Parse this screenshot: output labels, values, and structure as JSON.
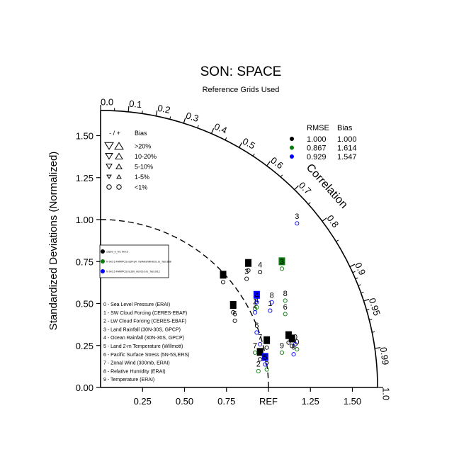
{
  "chart_data": {
    "type": "scatter",
    "title": "SON: SPACE",
    "subtitle": "Reference Grids Used",
    "ylabel": "Standardized Deviations (Normalized)",
    "arc_label": "Correlation",
    "ref_label": "REF",
    "r_max": 1.65,
    "axis_ticks": [
      "0.00",
      "0.25",
      "0.50",
      "0.75",
      "1.00",
      "1.25",
      "1.50"
    ],
    "x_ticks": [
      {
        "v": 0.25,
        "label": "0.25"
      },
      {
        "v": 0.5,
        "label": "0.50"
      },
      {
        "v": 0.75,
        "label": "0.75"
      },
      {
        "v": 1.0,
        "label": "REF"
      },
      {
        "v": 1.25,
        "label": "1.25"
      },
      {
        "v": 1.5,
        "label": "1.50"
      }
    ],
    "corr_ticks": [
      "0.0",
      "0.1",
      "0.2",
      "0.3",
      "0.4",
      "0.5",
      "0.6",
      "0.7",
      "0.8",
      "0.9",
      "0.95",
      "0.99",
      "1.0"
    ],
    "corr_values": [
      0.0,
      0.1,
      0.2,
      0.3,
      0.4,
      0.5,
      0.6,
      0.7,
      0.8,
      0.9,
      0.95,
      0.99,
      1.0
    ],
    "bias_legend": {
      "header_sign": "- / +",
      "header_bias": "Bias",
      "rows": [
        ">20%",
        "10-20%",
        "5-10%",
        "1-5%",
        "<1%"
      ]
    },
    "stats_table": {
      "headers": [
        "RMSE",
        "Bias"
      ],
      "rows": [
        {
          "color": "#000000",
          "rmse": "1.000",
          "bias": "1.000"
        },
        {
          "color": "#0a7a0a",
          "rmse": "0.867",
          "bias": "1.614"
        },
        {
          "color": "#0000ff",
          "rmse": "0.929",
          "bias": "1.547"
        }
      ]
    },
    "case_legend": [
      {
        "color": "#000000",
        "name": "case0_0_hr1 9x0.5"
      },
      {
        "color": "#0a7a0a",
        "name": "hi 0x0.5 FAMIPCS.resFrq4 .YanMeshNH8.0L.ro_Test.888"
      },
      {
        "color": "#0000ff",
        "name": "hi 0x0.5 FAMIPCS.hs100_rtef.00.0.lo_Test.0/12"
      }
    ],
    "variables": [
      "0 - Sea Level Pressure (ERAI)",
      "1 - SW Cloud Forcing (CERES-EBAF)",
      "2 - LW Cloud Forcing (CERES-EBAF)",
      "3 - Land Rainfall (30N-30S, GPCP)",
      "4 - Ocean Rainfall (30N-30S, GPCP)",
      "5 - Land 2-m Temperature (Willmott)",
      "6 - Pacific Surface Stress (5N-5S,ERS)",
      "7 - Zonal Wind (300mb, ERAI)",
      "8 - Relative Humidity (ERAI)",
      "9 - Temperature (ERAI)"
    ],
    "points": [
      {
        "series": 0,
        "id": "0",
        "x": 1.12,
        "y": 0.28,
        "style": "box"
      },
      {
        "series": 0,
        "id": "1",
        "x": 0.73,
        "y": 0.64,
        "style": "box"
      },
      {
        "series": 0,
        "id": "2",
        "x": 0.88,
        "y": 0.71,
        "style": "box"
      },
      {
        "series": 0,
        "id": "3",
        "x": 0.87,
        "y": 0.66,
        "style": "plain"
      },
      {
        "series": 0,
        "id": "4",
        "x": 0.95,
        "y": 0.7,
        "style": "plain"
      },
      {
        "series": 0,
        "id": "5",
        "x": 0.95,
        "y": 0.18,
        "style": "box"
      },
      {
        "series": 0,
        "id": "6",
        "x": 0.8,
        "y": 0.41,
        "style": "plain"
      },
      {
        "series": 0,
        "id": "7",
        "x": 0.99,
        "y": 0.25,
        "style": "box"
      },
      {
        "series": 0,
        "id": "8",
        "x": 0.79,
        "y": 0.46,
        "style": "box"
      },
      {
        "series": 0,
        "id": "9",
        "x": 1.14,
        "y": 0.26,
        "style": "box"
      },
      {
        "series": 1,
        "id": "0",
        "x": 1.17,
        "y": 0.24,
        "style": "plain"
      },
      {
        "series": 1,
        "id": "1",
        "x": 0.92,
        "y": 0.48,
        "style": "plain"
      },
      {
        "series": 1,
        "id": "2",
        "x": 0.94,
        "y": 0.11,
        "style": "plain"
      },
      {
        "series": 1,
        "id": "3",
        "x": 1.08,
        "y": 0.72,
        "style": "box"
      },
      {
        "series": 1,
        "id": "4",
        "x": 0.93,
        "y": 0.49,
        "style": "plain"
      },
      {
        "series": 1,
        "id": "5",
        "x": 0.99,
        "y": 0.12,
        "style": "plain"
      },
      {
        "series": 1,
        "id": "6",
        "x": 1.1,
        "y": 0.45,
        "style": "plain"
      },
      {
        "series": 1,
        "id": "7",
        "x": 0.92,
        "y": 0.22,
        "style": "plain"
      },
      {
        "series": 1,
        "id": "8",
        "x": 1.1,
        "y": 0.53,
        "style": "plain"
      },
      {
        "series": 1,
        "id": "9",
        "x": 1.08,
        "y": 0.22,
        "style": "plain"
      },
      {
        "series": 2,
        "id": "0",
        "x": 1.16,
        "y": 0.27,
        "style": "plain"
      },
      {
        "series": 2,
        "id": "1",
        "x": 1.01,
        "y": 0.47,
        "style": "plain"
      },
      {
        "series": 2,
        "id": "2",
        "x": 0.92,
        "y": 0.46,
        "style": "plain"
      },
      {
        "series": 2,
        "id": "3",
        "x": 1.17,
        "y": 0.99,
        "style": "plain"
      },
      {
        "series": 2,
        "id": "4",
        "x": 0.93,
        "y": 0.52,
        "style": "box"
      },
      {
        "series": 2,
        "id": "5",
        "x": 0.98,
        "y": 0.15,
        "style": "box"
      },
      {
        "series": 2,
        "id": "6",
        "x": 0.93,
        "y": 0.34,
        "style": "plain"
      },
      {
        "series": 2,
        "id": "7",
        "x": 0.95,
        "y": 0.27,
        "style": "plain"
      },
      {
        "series": 2,
        "id": "8",
        "x": 1.02,
        "y": 0.52,
        "style": "plain"
      },
      {
        "series": 2,
        "id": "9",
        "x": 1.15,
        "y": 0.21,
        "style": "plain"
      }
    ]
  }
}
